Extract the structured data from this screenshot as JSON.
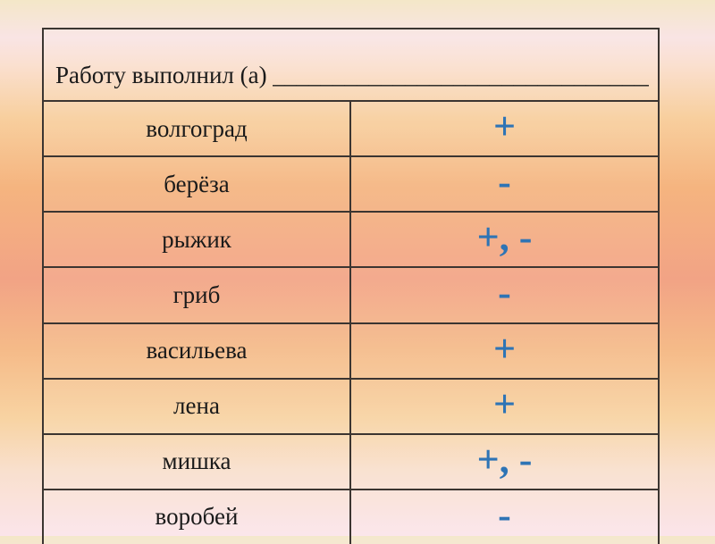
{
  "header": {
    "label": "Работу выполнил (а)",
    "blank": "______________________________________"
  },
  "table": {
    "rows": [
      {
        "word": "волгоград",
        "mark": "+"
      },
      {
        "word": "берёза",
        "mark": "-"
      },
      {
        "word": "рыжик",
        "mark": "+, -"
      },
      {
        "word": "гриб",
        "mark": "-"
      },
      {
        "word": "васильева",
        "mark": "+"
      },
      {
        "word": "лена",
        "mark": "+"
      },
      {
        "word": "мишка",
        "mark": "+, -"
      },
      {
        "word": "воробей",
        "mark": "-"
      }
    ]
  },
  "colors": {
    "mark_blue": "#2e74b5",
    "table_border": "#3b3531",
    "text": "#1a1a1a",
    "background_top_cream": "#f4e7c8",
    "background_pink": "#fbe4ea",
    "background_mid_salmon": "#f2a385"
  }
}
